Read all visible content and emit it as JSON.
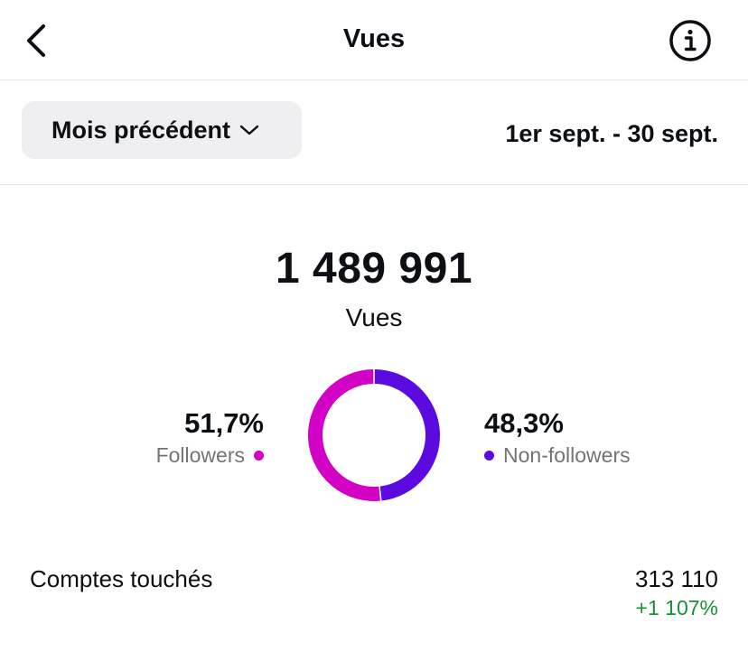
{
  "header": {
    "title": "Vues"
  },
  "filter": {
    "period_label": "Mois précédent",
    "date_range": "1er sept. - 30 sept."
  },
  "summary": {
    "total": "1 489 991",
    "total_label": "Vues"
  },
  "breakdown": {
    "followers": {
      "percent_text": "51,7%",
      "label": "Followers",
      "value": 51.7,
      "color": "#d300c5"
    },
    "non_followers": {
      "percent_text": "48,3%",
      "label": "Non-followers",
      "value": 48.3,
      "color": "#5b0be0"
    }
  },
  "metrics": [
    {
      "label": "Comptes touchés",
      "value": "313 110",
      "change": "+1 107%",
      "change_color": "#1a8f3c"
    }
  ],
  "icons": {
    "back": "chevron-left-icon",
    "info": "info-circle-icon",
    "dropdown": "chevron-down-icon"
  }
}
